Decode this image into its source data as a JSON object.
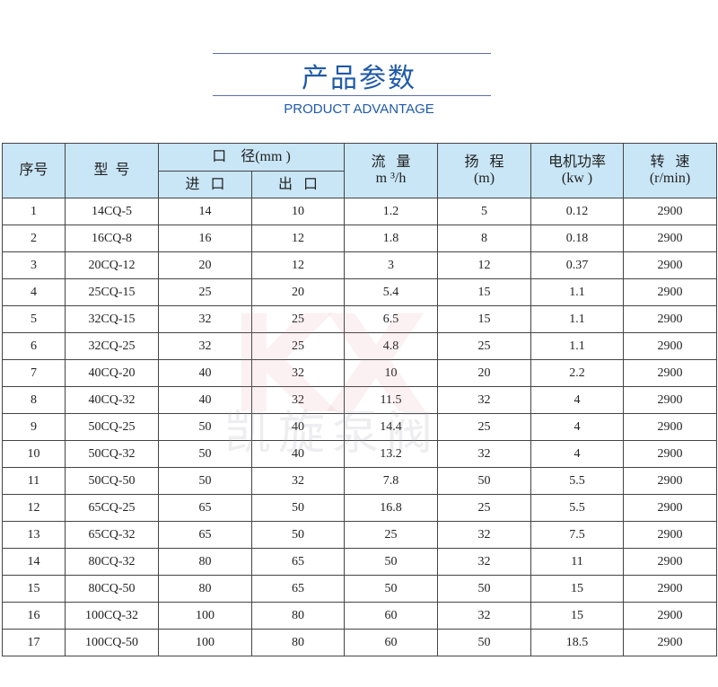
{
  "header": {
    "title": "产品参数",
    "subtitle": "PRODUCT ADVANTAGE"
  },
  "colors": {
    "accent": "#1f5aa8",
    "header_bg": "#c9e6f6"
  },
  "watermark": "凯旋泵阀",
  "table": {
    "headers": {
      "no": "序号",
      "model": "型  号",
      "diameter": "口    径(mm )",
      "inlet": "进   口",
      "outlet": "出   口",
      "flow": "流   量",
      "flow_unit": "m ³/h",
      "head": "扬   程",
      "head_unit": "(m)",
      "power": "电机功率",
      "power_unit": "(kw )",
      "speed": "转   速",
      "speed_unit": "(r/min)"
    },
    "rows": [
      [
        "1",
        "14CQ-5",
        "14",
        "10",
        "1.2",
        "5",
        "0.12",
        "2900"
      ],
      [
        "2",
        "16CQ-8",
        "16",
        "12",
        "1.8",
        "8",
        "0.18",
        "2900"
      ],
      [
        "3",
        "20CQ-12",
        "20",
        "12",
        "3",
        "12",
        "0.37",
        "2900"
      ],
      [
        "4",
        "25CQ-15",
        "25",
        "20",
        "5.4",
        "15",
        "1.1",
        "2900"
      ],
      [
        "5",
        "32CQ-15",
        "32",
        "25",
        "6.5",
        "15",
        "1.1",
        "2900"
      ],
      [
        "6",
        "32CQ-25",
        "32",
        "25",
        "4.8",
        "25",
        "1.1",
        "2900"
      ],
      [
        "7",
        "40CQ-20",
        "40",
        "32",
        "10",
        "20",
        "2.2",
        "2900"
      ],
      [
        "8",
        "40CQ-32",
        "40",
        "32",
        "11.5",
        "32",
        "4",
        "2900"
      ],
      [
        "9",
        "50CQ-25",
        "50",
        "40",
        "14.4",
        "25",
        "4",
        "2900"
      ],
      [
        "10",
        "50CQ-32",
        "50",
        "40",
        "13.2",
        "32",
        "4",
        "2900"
      ],
      [
        "11",
        "50CQ-50",
        "50",
        "32",
        "7.8",
        "50",
        "5.5",
        "2900"
      ],
      [
        "12",
        "65CQ-25",
        "65",
        "50",
        "16.8",
        "25",
        "5.5",
        "2900"
      ],
      [
        "13",
        "65CQ-32",
        "65",
        "50",
        "25",
        "32",
        "7.5",
        "2900"
      ],
      [
        "14",
        "80CQ-32",
        "80",
        "65",
        "50",
        "32",
        "11",
        "2900"
      ],
      [
        "15",
        "80CQ-50",
        "80",
        "65",
        "50",
        "50",
        "15",
        "2900"
      ],
      [
        "16",
        "100CQ-32",
        "100",
        "80",
        "60",
        "32",
        "15",
        "2900"
      ],
      [
        "17",
        "100CQ-50",
        "100",
        "80",
        "60",
        "50",
        "18.5",
        "2900"
      ]
    ]
  }
}
